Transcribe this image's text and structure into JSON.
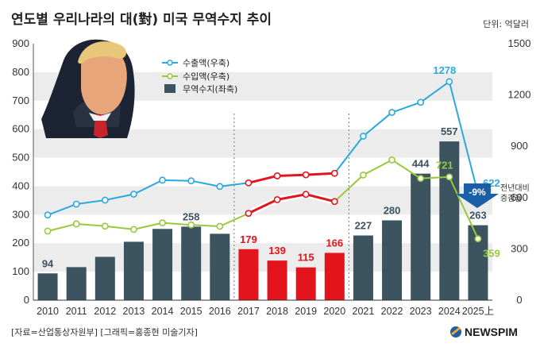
{
  "header": {
    "title": "연도별 우리나라의 대(對) 미국 무역수지 추이",
    "unit": "단위: 억달러"
  },
  "footer": {
    "source": "[자료=산업통상자원부] [그래픽=홍종현 미술기자]",
    "brand": "NEWSPIM"
  },
  "colors": {
    "bar": "#3c5360",
    "bar_highlight": "#e3141c",
    "export_line": "#2aa9e0",
    "import_line": "#99c93b",
    "label_dark": "#3c5360",
    "label_red": "#e3141c",
    "label_blue": "#2aa9e0",
    "label_green": "#99c93b",
    "band": "#ececec",
    "arrow": "#1b5fa8"
  },
  "chart_data": {
    "type": "bar",
    "categories": [
      "2010",
      "2011",
      "2012",
      "2013",
      "2014",
      "2015",
      "2016",
      "2017",
      "2018",
      "2019",
      "2020",
      "2021",
      "2022",
      "2023",
      "2024",
      "2025上"
    ],
    "highlight_range": [
      "2017",
      "2020"
    ],
    "series": [
      {
        "name": "무역수지(좌축)",
        "type": "bar",
        "axis": "left",
        "values": [
          94,
          116,
          152,
          205,
          250,
          258,
          233,
          179,
          139,
          115,
          166,
          227,
          280,
          444,
          557,
          263
        ]
      },
      {
        "name": "수출액(우축)",
        "type": "line",
        "axis": "right",
        "values": [
          498,
          562,
          585,
          620,
          702,
          698,
          665,
          686,
          727,
          733,
          742,
          959,
          1098,
          1157,
          1278,
          622
        ]
      },
      {
        "name": "수입액(우축)",
        "type": "line",
        "axis": "right",
        "values": [
          404,
          446,
          433,
          414,
          452,
          440,
          432,
          508,
          588,
          619,
          577,
          732,
          820,
          712,
          721,
          359
        ]
      }
    ],
    "labels": {
      "bar": [
        {
          "category": "2010",
          "text": "94",
          "color": "dark"
        },
        {
          "category": "2015",
          "text": "258",
          "color": "dark"
        },
        {
          "category": "2017",
          "text": "179",
          "color": "red"
        },
        {
          "category": "2018",
          "text": "139",
          "color": "red"
        },
        {
          "category": "2019",
          "text": "115",
          "color": "red"
        },
        {
          "category": "2020",
          "text": "166",
          "color": "red"
        },
        {
          "category": "2021",
          "text": "227",
          "color": "dark"
        },
        {
          "category": "2022",
          "text": "280",
          "color": "dark"
        },
        {
          "category": "2023",
          "text": "444",
          "color": "dark"
        },
        {
          "category": "2024",
          "text": "557",
          "color": "dark"
        },
        {
          "category": "2025上",
          "text": "263",
          "color": "dark"
        }
      ],
      "export": [
        {
          "category": "2024",
          "text": "1278"
        },
        {
          "category": "2025上",
          "text": "622"
        }
      ],
      "import": [
        {
          "category": "2024",
          "text": "721"
        },
        {
          "category": "2025上",
          "text": "359"
        }
      ]
    },
    "y_left": {
      "ticks": [
        0,
        100,
        200,
        300,
        400,
        500,
        600,
        700,
        800,
        900
      ],
      "range": [
        0,
        900
      ]
    },
    "y_right": {
      "ticks": [
        0,
        300,
        600,
        900,
        1200,
        1500
      ],
      "range": [
        0,
        1500
      ]
    },
    "annotation": {
      "value": "-9%",
      "text_lines": [
        "전년대비",
        "증감율"
      ]
    },
    "legend_position": "top-left",
    "grid": false
  }
}
